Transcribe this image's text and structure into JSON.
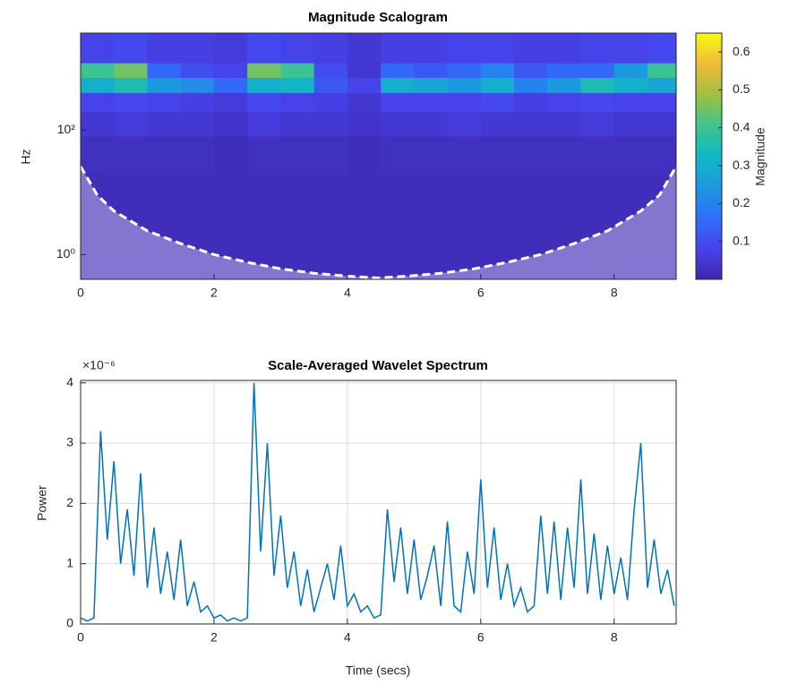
{
  "chart_data": [
    {
      "type": "heatmap",
      "title": "Magnitude Scalogram",
      "y_label": "Hz",
      "xlim": [
        0,
        8.93
      ],
      "xticks": [
        0,
        2,
        4,
        6,
        8
      ],
      "ylim": [
        0.4,
        3600
      ],
      "yscale": "log",
      "yticks": [
        {
          "value": 1,
          "label": "10⁰"
        },
        {
          "value": 100,
          "label": "10²"
        }
      ],
      "xbins": [
        0,
        0.5,
        1,
        1.5,
        2,
        2.5,
        3,
        3.5,
        4,
        4.5,
        5,
        5.5,
        6,
        6.5,
        7,
        7.5,
        8,
        8.5,
        8.93
      ],
      "ybins": [
        0.4,
        3,
        20,
        80,
        200,
        400,
        700,
        1200,
        3600
      ],
      "z": [
        [
          0.02,
          0.02,
          0.02,
          0.02,
          0.02,
          0.02,
          0.02,
          0.02,
          0.02,
          0.02,
          0.02,
          0.02,
          0.02,
          0.02,
          0.02,
          0.02,
          0.02,
          0.02
        ],
        [
          0.02,
          0.02,
          0.02,
          0.02,
          0.02,
          0.02,
          0.02,
          0.02,
          0.02,
          0.02,
          0.02,
          0.02,
          0.02,
          0.02,
          0.02,
          0.02,
          0.02,
          0.02
        ],
        [
          0.03,
          0.03,
          0.03,
          0.03,
          0.02,
          0.03,
          0.03,
          0.03,
          0.02,
          0.03,
          0.03,
          0.03,
          0.03,
          0.03,
          0.03,
          0.03,
          0.03,
          0.03
        ],
        [
          0.05,
          0.06,
          0.05,
          0.05,
          0.04,
          0.06,
          0.05,
          0.05,
          0.04,
          0.05,
          0.05,
          0.06,
          0.05,
          0.05,
          0.05,
          0.06,
          0.05,
          0.05
        ],
        [
          0.08,
          0.09,
          0.08,
          0.07,
          0.06,
          0.09,
          0.08,
          0.07,
          0.05,
          0.08,
          0.08,
          0.08,
          0.09,
          0.07,
          0.08,
          0.09,
          0.08,
          0.08
        ],
        [
          0.3,
          0.35,
          0.25,
          0.22,
          0.15,
          0.3,
          0.32,
          0.12,
          0.08,
          0.3,
          0.28,
          0.25,
          0.3,
          0.2,
          0.25,
          0.35,
          0.3,
          0.28
        ],
        [
          0.4,
          0.45,
          0.15,
          0.1,
          0.08,
          0.45,
          0.4,
          0.1,
          0.05,
          0.15,
          0.12,
          0.15,
          0.2,
          0.12,
          0.15,
          0.15,
          0.25,
          0.4
        ],
        [
          0.08,
          0.09,
          0.07,
          0.07,
          0.06,
          0.09,
          0.08,
          0.07,
          0.05,
          0.07,
          0.07,
          0.08,
          0.08,
          0.07,
          0.07,
          0.08,
          0.08,
          0.09
        ]
      ],
      "clim": [
        0,
        0.65
      ],
      "colormap": [
        "#3e26a8",
        "#4743ec",
        "#2f6ffb",
        "#1c98df",
        "#12b8c4",
        "#3ec48f",
        "#a0c03e",
        "#f0ba3a",
        "#f9fb0e"
      ],
      "colorbar_label": "Magnitude",
      "cticks": [
        0.1,
        0.2,
        0.3,
        0.4,
        0.5,
        0.6
      ],
      "coi": {
        "x": [
          0,
          0.25,
          0.5,
          1,
          1.5,
          2,
          2.5,
          3,
          3.5,
          4,
          4.46,
          4.9,
          5.4,
          5.9,
          6.4,
          6.9,
          7.4,
          7.9,
          8.4,
          8.68,
          8.93
        ],
        "y": [
          26,
          9,
          5,
          2.4,
          1.5,
          1,
          0.75,
          0.59,
          0.5,
          0.45,
          0.42,
          0.45,
          0.5,
          0.59,
          0.75,
          1,
          1.5,
          2.4,
          5,
          9,
          26
        ]
      }
    },
    {
      "type": "line",
      "title": "Scale-Averaged Wavelet Spectrum",
      "x_label": "Time (secs)",
      "y_label": "Power",
      "y_exponent": "×10⁻⁶",
      "xlim": [
        0,
        8.93
      ],
      "xticks": [
        0,
        2,
        4,
        6,
        8
      ],
      "ylim": [
        0,
        4.04
      ],
      "yticks": [
        0,
        1,
        2,
        3,
        4
      ],
      "grid": true,
      "x": [
        0,
        0.1,
        0.2,
        0.3,
        0.4,
        0.5,
        0.6,
        0.7,
        0.8,
        0.9,
        1,
        1.1,
        1.2,
        1.3,
        1.4,
        1.5,
        1.6,
        1.7,
        1.8,
        1.9,
        2,
        2.1,
        2.2,
        2.3,
        2.4,
        2.5,
        2.6,
        2.7,
        2.8,
        2.9,
        3,
        3.1,
        3.2,
        3.3,
        3.4,
        3.5,
        3.6,
        3.7,
        3.8,
        3.9,
        4,
        4.1,
        4.2,
        4.3,
        4.4,
        4.5,
        4.6,
        4.7,
        4.8,
        4.9,
        5,
        5.1,
        5.2,
        5.3,
        5.4,
        5.5,
        5.6,
        5.7,
        5.8,
        5.9,
        6,
        6.1,
        6.2,
        6.3,
        6.4,
        6.5,
        6.6,
        6.7,
        6.8,
        6.9,
        7,
        7.1,
        7.2,
        7.3,
        7.4,
        7.5,
        7.6,
        7.7,
        7.8,
        7.9,
        8,
        8.1,
        8.2,
        8.3,
        8.4,
        8.5,
        8.6,
        8.7,
        8.8,
        8.9
      ],
      "series": [
        {
          "color": "#0072bd",
          "values": [
            0.1,
            0.05,
            0.1,
            3.2,
            1.4,
            2.7,
            1.0,
            1.9,
            0.8,
            2.5,
            0.6,
            1.6,
            0.5,
            1.2,
            0.4,
            1.4,
            0.3,
            0.7,
            0.2,
            0.3,
            0.1,
            0.15,
            0.05,
            0.1,
            0.05,
            0.1,
            4.0,
            1.2,
            3.0,
            0.8,
            1.8,
            0.6,
            1.2,
            0.3,
            0.9,
            0.2,
            0.6,
            1.0,
            0.4,
            1.3,
            0.3,
            0.5,
            0.2,
            0.3,
            0.1,
            0.15,
            1.9,
            0.7,
            1.6,
            0.5,
            1.4,
            0.4,
            0.8,
            1.3,
            0.3,
            1.7,
            0.3,
            0.2,
            1.2,
            0.5,
            2.4,
            0.6,
            1.6,
            0.4,
            1.0,
            0.3,
            0.6,
            0.2,
            0.3,
            1.8,
            0.5,
            1.7,
            0.4,
            1.6,
            0.6,
            2.4,
            0.5,
            1.5,
            0.4,
            1.3,
            0.5,
            1.1,
            0.4,
            1.9,
            3.0,
            0.6,
            1.4,
            0.5,
            0.9,
            0.3
          ]
        }
      ]
    }
  ]
}
